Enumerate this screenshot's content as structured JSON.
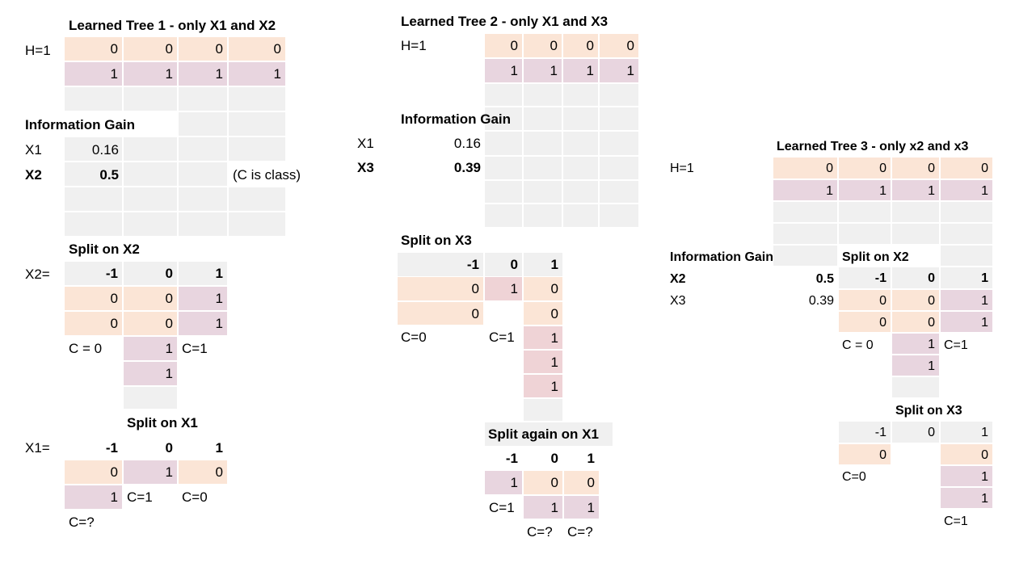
{
  "colors": {
    "peach": "#fbe5d6",
    "mauve": "#e8d5df",
    "pink": "#efd3d6",
    "grey": "#f0f0f0"
  },
  "tree1": {
    "title": "Learned Tree 1 - only X1 and X2",
    "h_label": "H=1",
    "row0": [
      "0",
      "0",
      "0",
      "0"
    ],
    "row1": [
      "1",
      "1",
      "1",
      "1"
    ],
    "ig_title": "Information Gain",
    "ig": [
      {
        "name": "X1",
        "value": "0.16"
      },
      {
        "name": "X2",
        "value": "0.5"
      }
    ],
    "note": "(C is class)",
    "split_x2": {
      "title": "Split on X2",
      "var": "X2=",
      "headers": [
        "-1",
        "0",
        "1"
      ],
      "rows": [
        [
          "0",
          "0",
          "1"
        ],
        [
          "0",
          "0",
          "1"
        ]
      ],
      "extra": [
        "1",
        "1"
      ],
      "c_left": "C = 0",
      "c_right": "C=1"
    },
    "split_x1": {
      "title": "Split on X1",
      "var": "X1=",
      "headers": [
        "-1",
        "0",
        "1"
      ],
      "row": [
        "0",
        "1",
        "0"
      ],
      "extra": "1",
      "c_mid": "C=1",
      "c_right": "C=0",
      "c_left": "C=?"
    }
  },
  "tree2": {
    "title": "Learned Tree 2 - only X1 and X3",
    "h_label": "H=1",
    "row0": [
      "0",
      "0",
      "0",
      "0"
    ],
    "row1": [
      "1",
      "1",
      "1",
      "1"
    ],
    "ig_title": "Information Gain",
    "ig": [
      {
        "name": "X1",
        "value": "0.16"
      },
      {
        "name": "X3",
        "value": "0.39"
      }
    ],
    "split_x3": {
      "title": "Split on X3",
      "headers": [
        "-1",
        "0",
        "1"
      ],
      "row0": [
        "0",
        "1",
        "0"
      ],
      "row1_left": "0",
      "row1_right": "0",
      "extra": [
        "1",
        "1",
        "1"
      ],
      "c_left": "C=0",
      "c_mid": "C=1"
    },
    "split_x1": {
      "title": "Split again on X1",
      "headers": [
        "-1",
        "0",
        "1"
      ],
      "row0": [
        "1",
        "0",
        "0"
      ],
      "c_first": "C=1",
      "row1": [
        "1",
        "1"
      ],
      "c_q1": "C=?",
      "c_q2": "C=?"
    }
  },
  "tree3": {
    "title": "Learned Tree 3 - only x2 and x3",
    "h_label": "H=1",
    "row0": [
      "0",
      "0",
      "0",
      "0"
    ],
    "row1": [
      "1",
      "1",
      "1",
      "1"
    ],
    "ig_title": "Information Gain",
    "ig": [
      {
        "name": "X2",
        "value": "0.5"
      },
      {
        "name": "X3",
        "value": "0.39"
      }
    ],
    "split_x2": {
      "title": "Split on X2",
      "headers": [
        "-1",
        "0",
        "1"
      ],
      "rows": [
        [
          "0",
          "0",
          "1"
        ],
        [
          "0",
          "0",
          "1"
        ]
      ],
      "extra": "1",
      "extra2": "1",
      "c_left": "C = 0",
      "c_right": "C=1"
    },
    "split_x3": {
      "title": "Split on X3",
      "headers": [
        "-1",
        "0",
        "1"
      ],
      "left": "0",
      "right": [
        "0",
        "1",
        "1"
      ],
      "c_left": "C=0",
      "c_right": "C=1"
    }
  }
}
